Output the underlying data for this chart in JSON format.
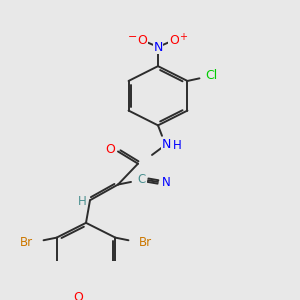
{
  "bg_color": "#e8e8e8",
  "bond_color": "#2d2d2d",
  "colors": {
    "O": "#ff0000",
    "N": "#0000ff",
    "Cl": "#00cc00",
    "Br": "#cc7700",
    "CN": "#4a9090",
    "H": "#4a9090",
    "default": "#2d2d2d"
  },
  "figsize": [
    3.0,
    3.0
  ],
  "dpi": 100,
  "lw": 1.4
}
